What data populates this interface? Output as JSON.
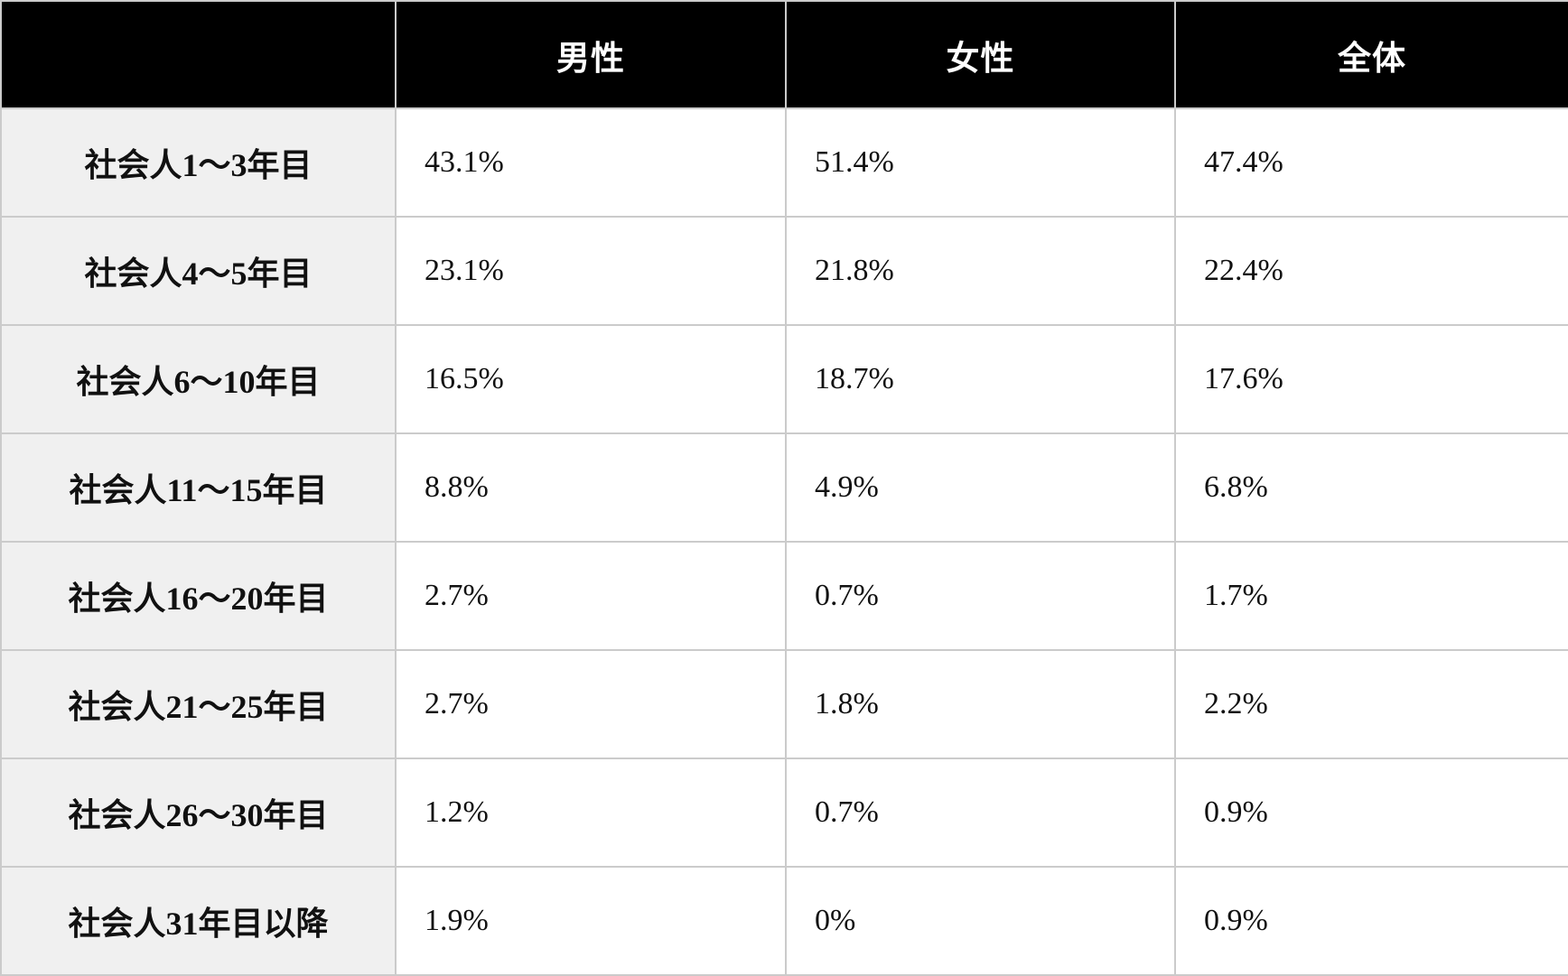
{
  "colors": {
    "header_bg": "#000000",
    "header_text": "#ffffff",
    "label_column_bg": "#f0f0f0",
    "border": "#cbcbcb",
    "body_text": "#111111"
  },
  "table": {
    "columns": [
      "",
      "男性",
      "女性",
      "全体"
    ],
    "rows": [
      {
        "label": "社会人1〜3年目",
        "values": [
          "43.1%",
          "51.4%",
          "47.4%"
        ]
      },
      {
        "label": "社会人4〜5年目",
        "values": [
          "23.1%",
          "21.8%",
          "22.4%"
        ]
      },
      {
        "label": "社会人6〜10年目",
        "values": [
          "16.5%",
          "18.7%",
          "17.6%"
        ]
      },
      {
        "label": "社会人11〜15年目",
        "values": [
          "8.8%",
          "4.9%",
          "6.8%"
        ]
      },
      {
        "label": "社会人16〜20年目",
        "values": [
          "2.7%",
          "0.7%",
          "1.7%"
        ]
      },
      {
        "label": "社会人21〜25年目",
        "values": [
          "2.7%",
          "1.8%",
          "2.2%"
        ]
      },
      {
        "label": "社会人26〜30年目",
        "values": [
          "1.2%",
          "0.7%",
          "0.9%"
        ]
      },
      {
        "label": "社会人31年目以降",
        "values": [
          "1.9%",
          "0%",
          "0.9%"
        ]
      }
    ]
  },
  "chart_data": {
    "type": "table",
    "title": "",
    "categories": [
      "社会人1〜3年目",
      "社会人4〜5年目",
      "社会人6〜10年目",
      "社会人11〜15年目",
      "社会人16〜20年目",
      "社会人21〜25年目",
      "社会人26〜30年目",
      "社会人31年目以降"
    ],
    "series": [
      {
        "name": "男性",
        "values": [
          43.1,
          23.1,
          16.5,
          8.8,
          2.7,
          2.7,
          1.2,
          1.9
        ]
      },
      {
        "name": "女性",
        "values": [
          51.4,
          21.8,
          18.7,
          4.9,
          0.7,
          1.8,
          0.7,
          0
        ]
      },
      {
        "name": "全体",
        "values": [
          47.4,
          22.4,
          17.6,
          6.8,
          1.7,
          2.2,
          0.9,
          0.9
        ]
      }
    ],
    "unit": "%"
  }
}
